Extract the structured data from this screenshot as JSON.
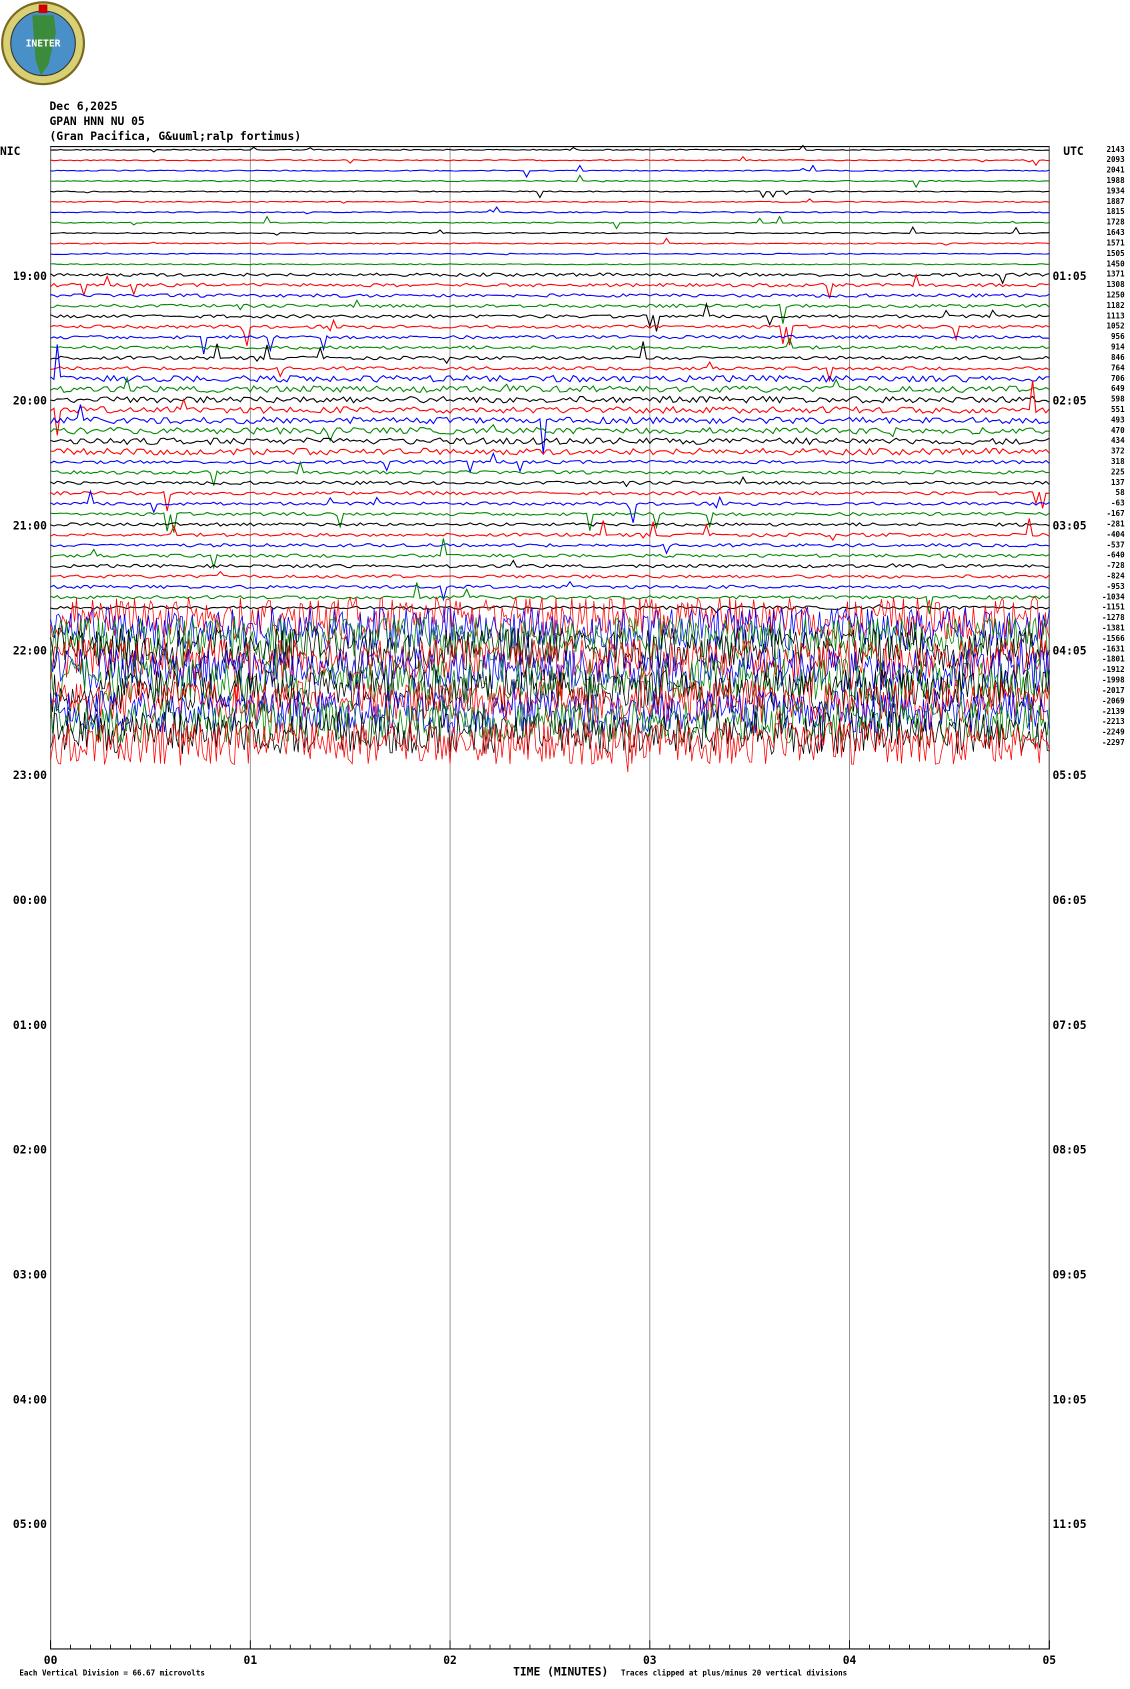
{
  "header": {
    "logo": "INETER",
    "date": "Dec 6,2025",
    "station": "GPAN HNN NU 05",
    "location": "(Gran Pacifica, G&uuml;ralp fortimus)"
  },
  "left_axis": {
    "title": "NIC",
    "labels": [
      "19:00",
      "20:00",
      "21:00",
      "22:00",
      "23:00",
      "00:00",
      "01:00",
      "02:00",
      "03:00",
      "04:00",
      "05:00"
    ]
  },
  "right_axis": {
    "title": "UTC",
    "labels": [
      "01:05",
      "02:05",
      "03:05",
      "04:05",
      "05:05",
      "06:05",
      "07:05",
      "08:05",
      "09:05",
      "10:05",
      "11:05"
    ]
  },
  "trace_labels": [
    "2143",
    "2093",
    "2041",
    "1988",
    "1934",
    "1887",
    "1815",
    "1728",
    "1643",
    "1571",
    "1505",
    "1450",
    "1371",
    "1308",
    "1250",
    "1182",
    "1113",
    "1052",
    "956",
    "914",
    "846",
    "764",
    "706",
    "649",
    "598",
    "551",
    "493",
    "470",
    "434",
    "372",
    "318",
    "225",
    "137",
    "58",
    "-63",
    "-167",
    "-281",
    "-404",
    "-537",
    "-640",
    "-728",
    "-824",
    "-953",
    "-1034",
    "-1151",
    "-1278",
    "-1381",
    "-1566",
    "-1631",
    "-1801",
    "-1912",
    "-1998",
    "-2017",
    "-2069",
    "-2139",
    "-2213",
    "-2249",
    "-2297"
  ],
  "x_axis": {
    "title": "TIME (MINUTES)",
    "ticks": [
      "00",
      "01",
      "02",
      "03",
      "04",
      "05"
    ]
  },
  "footer": {
    "division": "Each Vertical Division =   66.67 microvolts",
    "clip": "Traces clipped at plus/minus 20 vertical divisions"
  }
}
